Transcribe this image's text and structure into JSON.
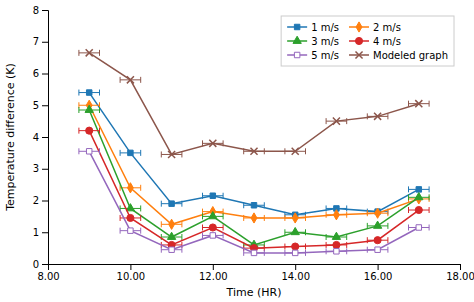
{
  "chart_data": {
    "type": "line",
    "x_label": "Time (HR)",
    "y_label": "Temperature difference (K)",
    "xlim": [
      8.0,
      18.0
    ],
    "ylim": [
      0,
      8
    ],
    "xticks": [
      {
        "value": 8.0,
        "label": "8.00"
      },
      {
        "value": 10.0,
        "label": "10.00"
      },
      {
        "value": 12.0,
        "label": "12.00"
      },
      {
        "value": 14.0,
        "label": "14.00"
      },
      {
        "value": 16.0,
        "label": "16.00"
      },
      {
        "value": 18.0,
        "label": "18.00"
      }
    ],
    "yticks": [
      0,
      1,
      2,
      3,
      4,
      5,
      6,
      7,
      8
    ],
    "grid": false,
    "legend": "upper right",
    "x": [
      9,
      10,
      11,
      12,
      13,
      14,
      15,
      16,
      17
    ],
    "series": [
      {
        "name": "1 m/s",
        "marker": "square",
        "line_style": "solid",
        "values": [
          5.4,
          3.5,
          1.9,
          2.15,
          1.85,
          1.55,
          1.75,
          1.65,
          2.35
        ],
        "xerr": [
          0.25,
          0.25,
          0.25,
          0.25,
          0.25,
          0.25,
          0.25,
          0.25,
          0.25
        ]
      },
      {
        "name": "2 m/s",
        "marker": "diamond",
        "line_style": "solid",
        "values": [
          5.0,
          2.4,
          1.25,
          1.65,
          1.45,
          1.45,
          1.55,
          1.6,
          2.05
        ],
        "xerr": [
          0.25,
          0.25,
          0.25,
          0.25,
          0.25,
          0.25,
          0.25,
          0.25,
          0.25
        ]
      },
      {
        "name": "3 m/s",
        "marker": "triangle",
        "line_style": "solid",
        "values": [
          4.85,
          1.75,
          0.85,
          1.5,
          0.6,
          1.0,
          0.85,
          1.2,
          2.1
        ],
        "xerr": [
          0.25,
          0.25,
          0.25,
          0.25,
          0.25,
          0.25,
          0.25,
          0.25,
          0.25
        ]
      },
      {
        "name": "4 m/s",
        "marker": "circle",
        "line_style": "solid",
        "values": [
          4.2,
          1.45,
          0.6,
          1.15,
          0.5,
          0.55,
          0.6,
          0.75,
          1.7
        ],
        "xerr": [
          0.25,
          0.25,
          0.25,
          0.25,
          0.25,
          0.25,
          0.25,
          0.25,
          0.25
        ]
      },
      {
        "name": "5 m/s",
        "marker": "square-open",
        "line_style": "solid",
        "values": [
          3.55,
          1.05,
          0.45,
          0.9,
          0.35,
          0.35,
          0.4,
          0.45,
          1.15
        ],
        "xerr": [
          0.25,
          0.25,
          0.25,
          0.25,
          0.25,
          0.25,
          0.25,
          0.25,
          0.25
        ]
      },
      {
        "name": "Modeled graph",
        "marker": "x",
        "line_style": "solid",
        "values": [
          6.65,
          5.8,
          3.45,
          3.8,
          3.55,
          3.55,
          4.5,
          4.65,
          5.05
        ],
        "xerr": [
          0.25,
          0.25,
          0.25,
          0.25,
          0.25,
          0.25,
          0.25,
          0.25,
          0.25
        ]
      }
    ]
  }
}
